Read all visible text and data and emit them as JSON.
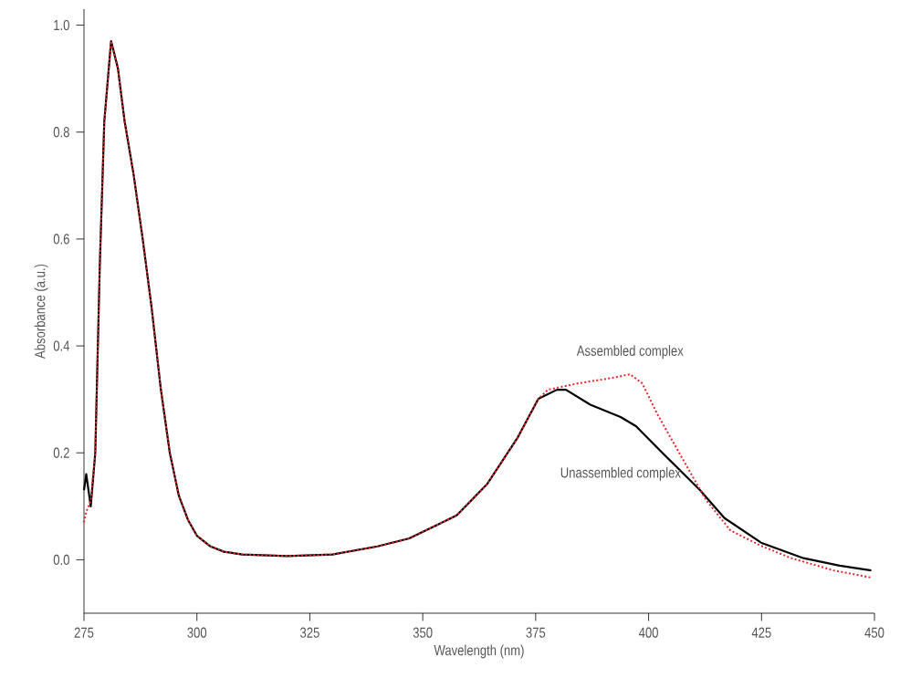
{
  "chart_data": {
    "type": "line",
    "xlabel": "Wavelength (nm)",
    "ylabel": "Absorbance (a.u.)",
    "xlim": [
      275,
      450
    ],
    "ylim": [
      -0.1,
      1.03
    ],
    "xticks": [
      275,
      300,
      325,
      350,
      375,
      400,
      425,
      450
    ],
    "yticks": [
      {
        "value": 0,
        "label": "0.0"
      },
      0.2,
      0.4,
      0.6,
      0.8,
      {
        "value": 1,
        "label": "1.0"
      }
    ],
    "grid": false,
    "legend": false,
    "marker": "none",
    "series": [
      {
        "name": "Unassembled complex",
        "color": "#000000",
        "line_style": "solid",
        "x": [
          275,
          275.5,
          276.5,
          277.5,
          278.5,
          279.5,
          281,
          282.5,
          284,
          286,
          288,
          290,
          292,
          294,
          296,
          298,
          300,
          303,
          306,
          310,
          320,
          330,
          340,
          347,
          353.4,
          357.5,
          364.2,
          370.9,
          375.6,
          379.7,
          381.7,
          387.1,
          393.8,
          397.2,
          403.3,
          411.4,
          416.8,
          424.9,
          434.3,
          442.3,
          449.3
        ],
        "values": [
          0.13,
          0.16,
          0.1,
          0.2,
          0.55,
          0.82,
          0.97,
          0.92,
          0.82,
          0.72,
          0.6,
          0.47,
          0.32,
          0.2,
          0.12,
          0.075,
          0.045,
          0.025,
          0.015,
          0.01,
          0.007,
          0.01,
          0.025,
          0.04,
          0.066,
          0.083,
          0.141,
          0.227,
          0.301,
          0.318,
          0.318,
          0.29,
          0.267,
          0.25,
          0.198,
          0.13,
          0.078,
          0.032,
          0.003,
          -0.011,
          -0.02
        ]
      },
      {
        "name": "Assembled complex",
        "color": "#e8262a",
        "line_style": "dotted",
        "x": [
          275,
          275.5,
          276.5,
          277.5,
          278.5,
          279.5,
          281,
          282.5,
          284,
          286,
          288,
          290,
          292,
          294,
          296,
          298,
          300,
          303,
          306,
          310,
          320,
          330,
          340,
          347,
          353.4,
          357.5,
          364.2,
          370.9,
          375.6,
          377.7,
          384.4,
          392.5,
          395.9,
          398.6,
          401.9,
          407.3,
          412.7,
          418.1,
          424.9,
          431.6,
          441,
          449.1
        ],
        "values": [
          0.07,
          0.09,
          0.11,
          0.2,
          0.55,
          0.82,
          0.97,
          0.92,
          0.82,
          0.72,
          0.6,
          0.47,
          0.32,
          0.2,
          0.12,
          0.075,
          0.045,
          0.025,
          0.015,
          0.01,
          0.007,
          0.01,
          0.025,
          0.04,
          0.066,
          0.083,
          0.141,
          0.227,
          0.301,
          0.318,
          0.33,
          0.341,
          0.347,
          0.33,
          0.273,
          0.192,
          0.112,
          0.055,
          0.026,
          0.003,
          -0.02,
          -0.033
        ]
      }
    ]
  }
}
